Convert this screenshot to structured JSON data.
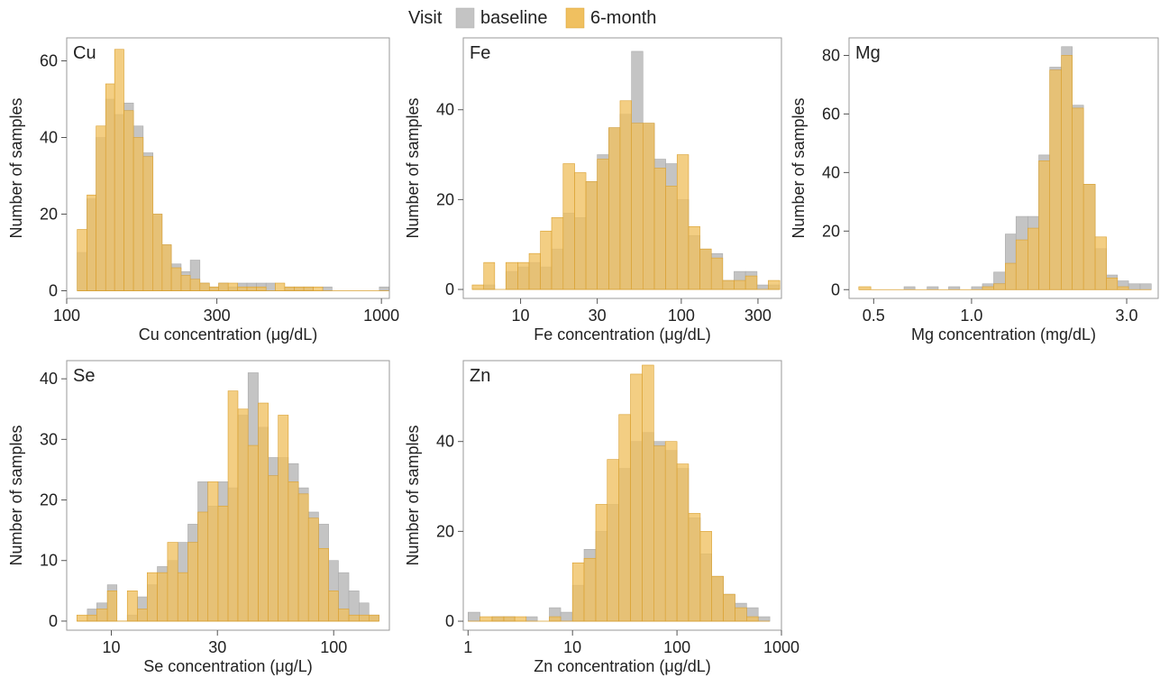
{
  "legend": {
    "title": "Visit",
    "items": [
      {
        "label": "baseline",
        "color": "#c4c4c4"
      },
      {
        "label": "6-month",
        "color": "#f0c060"
      }
    ]
  },
  "ylabel": "Number of samples",
  "colors": {
    "baseline": "#c4c4c4",
    "sixmonth": "#f0c060",
    "sixmonth_edge": "#d9a030",
    "baseline_edge": "#aaaaaa"
  },
  "chart_data": [
    {
      "type": "histogram",
      "name": "Cu",
      "xlabel": "Cu concentration (μg/dL)",
      "x_scale": "log",
      "xlim": [
        100,
        1060
      ],
      "ylim": [
        -2,
        66
      ],
      "xticks": [
        {
          "v": 100,
          "label": "100"
        },
        {
          "v": 300,
          "label": "300"
        },
        {
          "v": 1000,
          "label": "1000"
        }
      ],
      "yticks": [
        0,
        20,
        40,
        60
      ],
      "bins": [
        [
          108,
          116
        ],
        [
          116,
          124
        ],
        [
          124,
          133
        ],
        [
          133,
          142
        ],
        [
          142,
          152
        ],
        [
          152,
          163
        ],
        [
          163,
          175
        ],
        [
          175,
          188
        ],
        [
          188,
          201
        ],
        [
          201,
          215
        ],
        [
          215,
          231
        ],
        [
          231,
          247
        ],
        [
          247,
          265
        ],
        [
          265,
          284
        ],
        [
          284,
          304
        ],
        [
          304,
          326
        ],
        [
          326,
          349
        ],
        [
          349,
          374
        ],
        [
          374,
          401
        ],
        [
          401,
          430
        ],
        [
          430,
          460
        ],
        [
          460,
          493
        ],
        [
          493,
          529
        ],
        [
          529,
          567
        ],
        [
          567,
          607
        ],
        [
          607,
          651
        ],
        [
          651,
          697
        ],
        [
          697,
          747
        ],
        [
          747,
          801
        ],
        [
          801,
          858
        ],
        [
          858,
          920
        ],
        [
          920,
          985
        ],
        [
          985,
          1056
        ]
      ],
      "baseline": [
        10,
        24,
        40,
        50,
        46,
        49,
        43,
        36,
        20,
        12,
        7,
        5,
        8,
        2,
        1,
        2,
        1,
        2,
        2,
        2,
        2,
        0,
        1,
        1,
        1,
        0,
        1,
        0,
        0,
        0,
        0,
        0,
        1
      ],
      "sixmonth": [
        16,
        25,
        43,
        54,
        63,
        47,
        40,
        35,
        20,
        12,
        6,
        4,
        3,
        2,
        1,
        2,
        2,
        1,
        1,
        1,
        0,
        2,
        1,
        1,
        1,
        1,
        0,
        0,
        0,
        0,
        0,
        0,
        0
      ]
    },
    {
      "type": "histogram",
      "name": "Fe",
      "xlabel": "Fe concentration (μg/dL)",
      "x_scale": "log",
      "xlim": [
        4.4,
        420
      ],
      "ylim": [
        -2,
        56
      ],
      "xticks": [
        {
          "v": 10,
          "label": "10"
        },
        {
          "v": 30,
          "label": "30"
        },
        {
          "v": 100,
          "label": "100"
        },
        {
          "v": 300,
          "label": "300"
        }
      ],
      "yticks": [
        0,
        20,
        40
      ],
      "bins": [
        [
          5,
          5.9
        ],
        [
          5.9,
          6.9
        ],
        [
          6.9,
          8.1
        ],
        [
          8.1,
          9.6
        ],
        [
          9.6,
          11.3
        ],
        [
          11.3,
          13.3
        ],
        [
          13.3,
          15.6
        ],
        [
          15.6,
          18.4
        ],
        [
          18.4,
          21.7
        ],
        [
          21.7,
          25.5
        ],
        [
          25.5,
          30
        ],
        [
          30,
          35.4
        ],
        [
          35.4,
          41.6
        ],
        [
          41.6,
          49
        ],
        [
          49,
          57.7
        ],
        [
          57.7,
          68
        ],
        [
          68,
          80
        ],
        [
          80,
          94.2
        ],
        [
          94.2,
          111
        ],
        [
          111,
          130.6
        ],
        [
          130.6,
          153.8
        ],
        [
          153.8,
          181
        ],
        [
          181,
          213
        ],
        [
          213,
          251
        ],
        [
          251,
          296
        ],
        [
          296,
          348
        ],
        [
          348,
          410
        ]
      ],
      "baseline": [
        0,
        1,
        0,
        4,
        5,
        6,
        5,
        9,
        17,
        16,
        24,
        30,
        36,
        39,
        53,
        37,
        29,
        28,
        20,
        12,
        9,
        8,
        2,
        4,
        4,
        1,
        1
      ],
      "sixmonth": [
        1,
        6,
        0,
        6,
        6,
        8,
        13,
        16,
        28,
        26,
        24,
        29,
        36,
        42,
        37,
        37,
        27,
        23,
        30,
        14,
        9,
        7,
        2,
        2,
        3,
        0,
        2
      ]
    },
    {
      "type": "histogram",
      "name": "Mg",
      "xlabel": "Mg concentration (mg/dL)",
      "x_scale": "log",
      "xlim": [
        0.42,
        3.75
      ],
      "ylim": [
        -3,
        86
      ],
      "xticks": [
        {
          "v": 0.5,
          "label": "0.5"
        },
        {
          "v": 1.0,
          "label": "1.0"
        },
        {
          "v": 3.0,
          "label": "3.0"
        }
      ],
      "yticks": [
        0,
        20,
        40,
        60,
        80
      ],
      "bins": [
        [
          0.45,
          0.49
        ],
        [
          0.49,
          0.53
        ],
        [
          0.53,
          0.57
        ],
        [
          0.57,
          0.62
        ],
        [
          0.62,
          0.67
        ],
        [
          0.67,
          0.73
        ],
        [
          0.73,
          0.79
        ],
        [
          0.79,
          0.85
        ],
        [
          0.85,
          0.92
        ],
        [
          0.92,
          1.0
        ],
        [
          1.0,
          1.08
        ],
        [
          1.08,
          1.17
        ],
        [
          1.17,
          1.27
        ],
        [
          1.27,
          1.37
        ],
        [
          1.37,
          1.49
        ],
        [
          1.49,
          1.61
        ],
        [
          1.61,
          1.74
        ],
        [
          1.74,
          1.89
        ],
        [
          1.89,
          2.04
        ],
        [
          2.04,
          2.21
        ],
        [
          2.21,
          2.4
        ],
        [
          2.4,
          2.6
        ],
        [
          2.6,
          2.81
        ],
        [
          2.81,
          3.04
        ],
        [
          3.04,
          3.3
        ],
        [
          3.3,
          3.57
        ]
      ],
      "baseline": [
        0,
        0,
        0,
        0,
        1,
        0,
        1,
        0,
        1,
        0,
        1,
        2,
        6,
        19,
        25,
        25,
        46,
        76,
        83,
        63,
        36,
        14,
        5,
        3,
        2,
        2
      ],
      "sixmonth": [
        1,
        0,
        0,
        0,
        0,
        0,
        0,
        0,
        0,
        0,
        0,
        1,
        2,
        9,
        17,
        21,
        44,
        75,
        80,
        62,
        36,
        18,
        4,
        1,
        0,
        0
      ]
    },
    {
      "type": "histogram",
      "name": "Se",
      "xlabel": "Se concentration (μg/L)",
      "x_scale": "log",
      "xlim": [
        6.3,
        178
      ],
      "ylim": [
        -1.5,
        43
      ],
      "xticks": [
        {
          "v": 10,
          "label": "10"
        },
        {
          "v": 30,
          "label": "30"
        },
        {
          "v": 100,
          "label": "100"
        }
      ],
      "yticks": [
        0,
        10,
        20,
        30,
        40
      ],
      "bins": [
        [
          7,
          7.8
        ],
        [
          7.8,
          8.6
        ],
        [
          8.6,
          9.6
        ],
        [
          9.6,
          10.6
        ],
        [
          10.6,
          11.8
        ],
        [
          11.8,
          13.1
        ],
        [
          13.1,
          14.5
        ],
        [
          14.5,
          16.1
        ],
        [
          16.1,
          17.9
        ],
        [
          17.9,
          19.9
        ],
        [
          19.9,
          22.1
        ],
        [
          22.1,
          24.5
        ],
        [
          24.5,
          27.2
        ],
        [
          27.2,
          30.2
        ],
        [
          30.2,
          33.5
        ],
        [
          33.5,
          37.1
        ],
        [
          37.1,
          41.2
        ],
        [
          41.2,
          45.8
        ],
        [
          45.8,
          50.8
        ],
        [
          50.8,
          56.3
        ],
        [
          56.3,
          62.5
        ],
        [
          62.5,
          69.4
        ],
        [
          69.4,
          77
        ],
        [
          77,
          85.5
        ],
        [
          85.5,
          94.9
        ],
        [
          94.9,
          105
        ],
        [
          105,
          117
        ],
        [
          117,
          130
        ],
        [
          130,
          144
        ],
        [
          144,
          160
        ]
      ],
      "baseline": [
        0,
        2,
        3,
        6,
        0,
        1,
        4,
        6,
        9,
        10,
        13,
        16,
        23,
        19,
        23,
        22,
        34,
        41,
        32,
        27,
        27,
        26,
        22,
        18,
        16,
        10,
        8,
        5,
        3,
        1
      ],
      "sixmonth": [
        1,
        1,
        2,
        5,
        0,
        5,
        2,
        8,
        8,
        13,
        8,
        13,
        18,
        23,
        19,
        38,
        35,
        29,
        36,
        24,
        34,
        23,
        21,
        17,
        12,
        5,
        2,
        1,
        1,
        1
      ]
    },
    {
      "type": "histogram",
      "name": "Zn",
      "xlabel": "Zn concentration (μg/dL)",
      "x_scale": "log",
      "xlim": [
        0.9,
        1000
      ],
      "ylim": [
        -2,
        58
      ],
      "xticks": [
        {
          "v": 1,
          "label": "1"
        },
        {
          "v": 10,
          "label": "10"
        },
        {
          "v": 100,
          "label": "100"
        },
        {
          "v": 1000,
          "label": "1000"
        }
      ],
      "yticks": [
        0,
        20,
        40
      ],
      "bins": [
        [
          1,
          1.3
        ],
        [
          1.3,
          1.7
        ],
        [
          1.7,
          2.2
        ],
        [
          2.2,
          2.8
        ],
        [
          2.8,
          3.6
        ],
        [
          3.6,
          4.6
        ],
        [
          4.6,
          6
        ],
        [
          6,
          7.7
        ],
        [
          7.7,
          10
        ],
        [
          10,
          12.9
        ],
        [
          12.9,
          16.7
        ],
        [
          16.7,
          21.5
        ],
        [
          21.5,
          27.8
        ],
        [
          27.8,
          35.9
        ],
        [
          35.9,
          46.4
        ],
        [
          46.4,
          59.9
        ],
        [
          59.9,
          77.4
        ],
        [
          77.4,
          100
        ],
        [
          100,
          129
        ],
        [
          129,
          167
        ],
        [
          167,
          215
        ],
        [
          215,
          278
        ],
        [
          278,
          359
        ],
        [
          359,
          464
        ],
        [
          464,
          599
        ],
        [
          599,
          774
        ]
      ],
      "baseline": [
        2,
        0,
        1,
        1,
        0,
        1,
        0,
        3,
        2,
        8,
        16,
        20,
        26,
        34,
        40,
        42,
        40,
        38,
        34,
        23,
        15,
        10,
        6,
        4,
        3,
        1
      ],
      "sixmonth": [
        0,
        1,
        1,
        1,
        1,
        0,
        0,
        1,
        0,
        13,
        14,
        26,
        36,
        46,
        55,
        57,
        39,
        40,
        35,
        24,
        20,
        10,
        6,
        3,
        1,
        0
      ]
    }
  ]
}
